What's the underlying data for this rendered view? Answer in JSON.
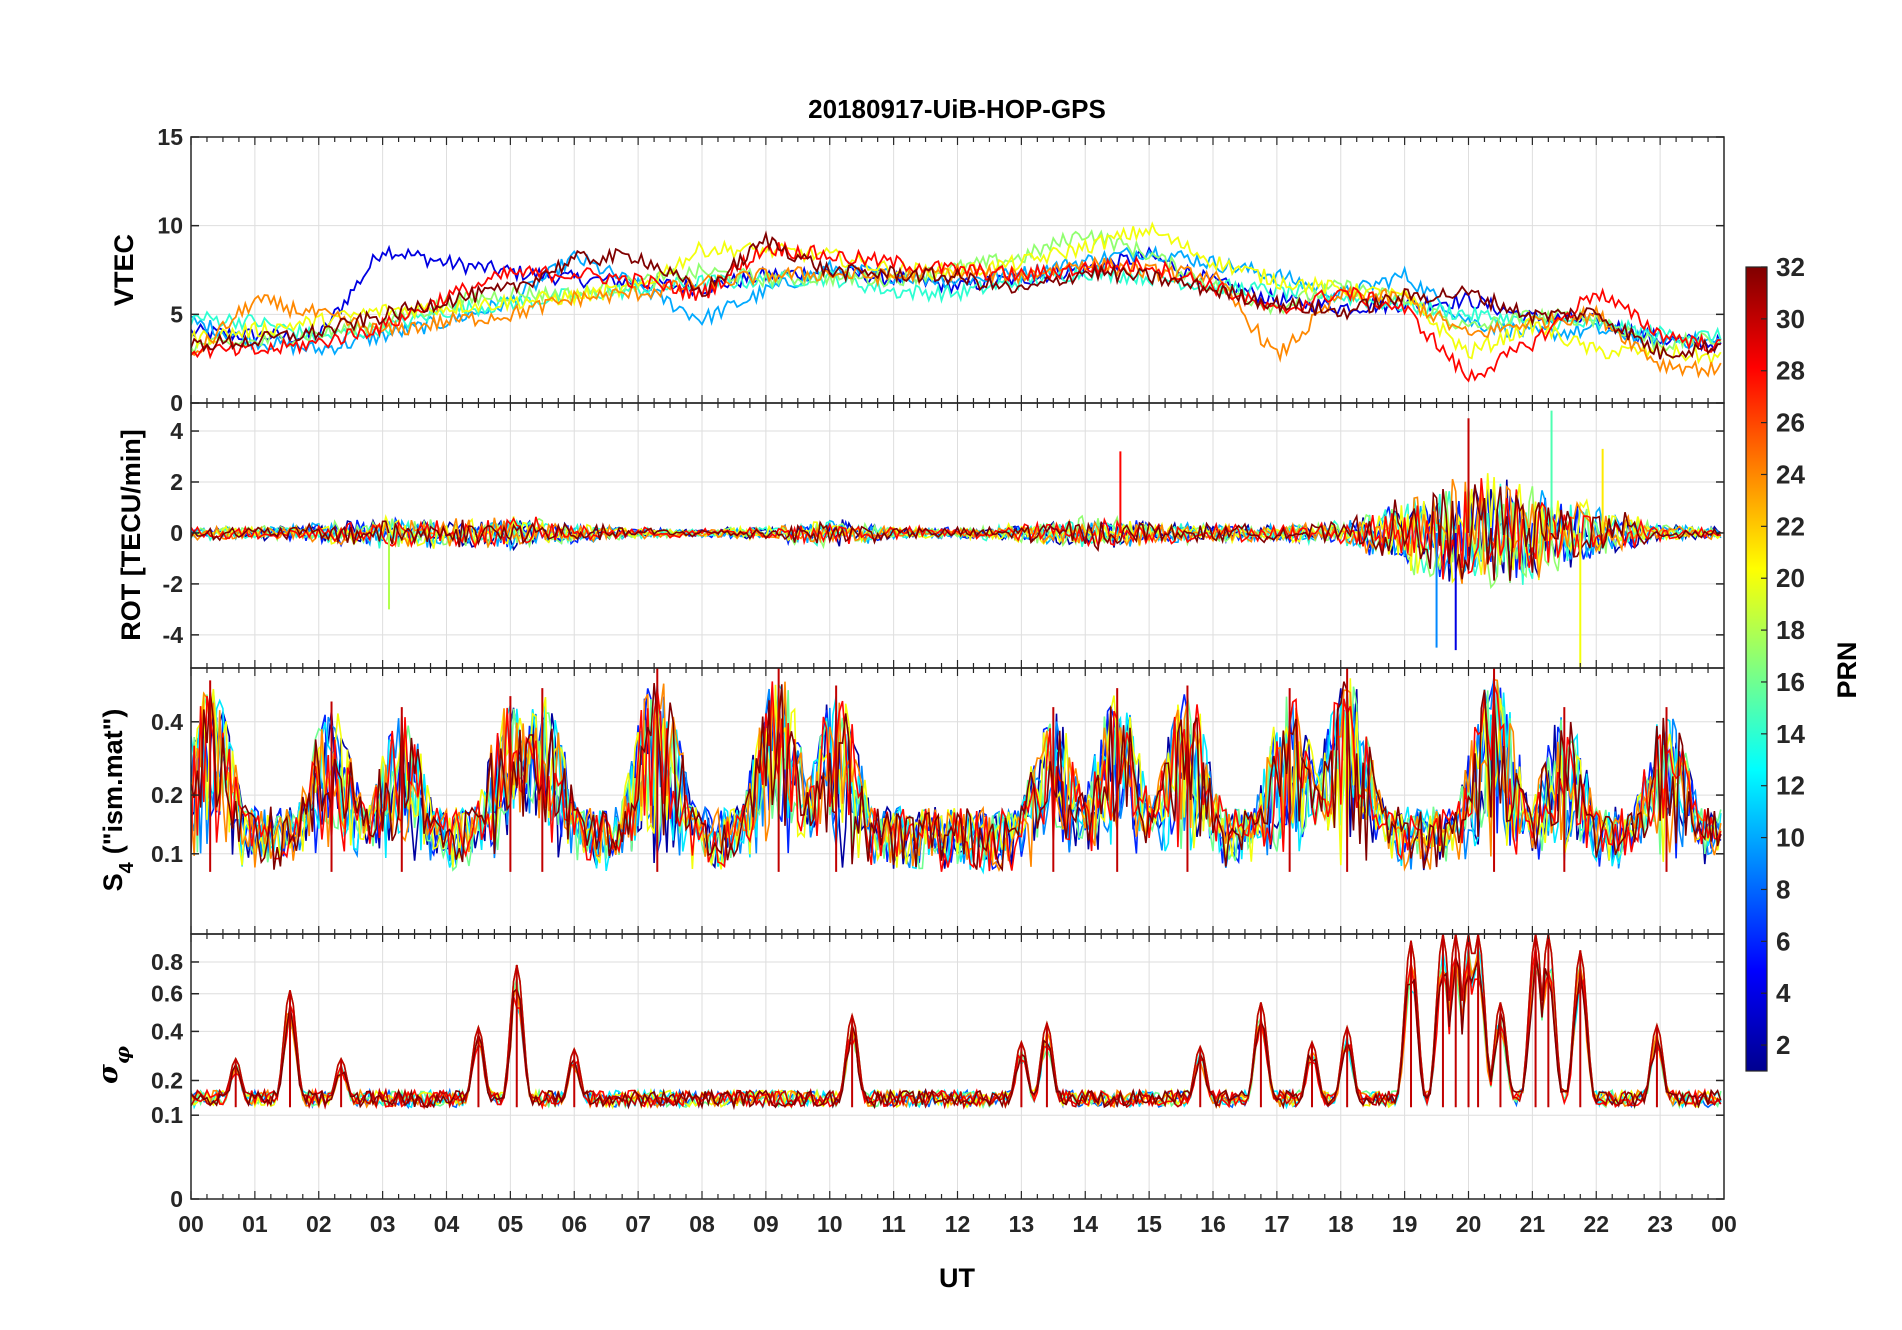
{
  "chart_data": {
    "type": "line",
    "title": "20180917-UiB-HOP-GPS",
    "xlabel": "UT",
    "x_tick_labels": [
      "00",
      "01",
      "02",
      "03",
      "04",
      "05",
      "06",
      "07",
      "08",
      "09",
      "10",
      "11",
      "12",
      "13",
      "14",
      "15",
      "16",
      "17",
      "18",
      "19",
      "20",
      "21",
      "22",
      "23",
      "00"
    ],
    "xlim_hours": [
      0,
      24
    ],
    "grid": true,
    "panels": [
      {
        "id": "vtec",
        "ylabel": "VTEC",
        "ylim": [
          0,
          15
        ],
        "yticks": [
          0,
          5,
          10,
          15
        ],
        "ytick_labels": [
          "0",
          "5",
          "10",
          "15"
        ],
        "series": [
          {
            "prn": 4,
            "x": [
              0.0,
              1.0,
              2.0,
              3.0,
              4.0,
              5.0,
              6.0,
              7.0,
              8.0,
              9.0,
              10.0,
              11.0,
              12.0,
              13.0,
              14.0,
              15.0,
              16.0,
              17.0,
              18.0,
              19.0,
              20.0,
              21.0,
              22.0,
              23.0,
              24.0
            ],
            "y": [
              4.0,
              3.8,
              3.7,
              8.7,
              7.9,
              7.4,
              7.0,
              6.8,
              6.5,
              7.2,
              7.4,
              7.0,
              6.6,
              7.0,
              7.6,
              8.3,
              6.8,
              5.8,
              5.4,
              5.6,
              5.8,
              4.8,
              4.6,
              3.6,
              3.3
            ]
          },
          {
            "prn": 10,
            "x": [
              0.0,
              1.0,
              2.0,
              3.0,
              4.0,
              5.0,
              6.0,
              7.0,
              8.0,
              9.0,
              10.0,
              11.0,
              12.0,
              13.0,
              14.0,
              15.0,
              16.0,
              17.0,
              18.0,
              19.0,
              20.0,
              21.0,
              22.0,
              23.0,
              24.0
            ],
            "y": [
              4.6,
              3.5,
              3.0,
              3.8,
              4.6,
              5.7,
              8.2,
              6.6,
              4.7,
              6.3,
              7.6,
              7.2,
              6.9,
              7.3,
              8.0,
              8.6,
              7.9,
              7.2,
              6.1,
              7.2,
              4.6,
              3.9,
              4.1,
              3.6,
              3.4
            ]
          },
          {
            "prn": 14,
            "x": [
              0.0,
              1.0,
              2.0,
              3.0,
              4.0,
              5.0,
              6.0,
              7.0,
              8.0,
              9.0,
              10.0,
              11.0,
              12.0,
              13.0,
              14.0,
              15.0,
              16.0,
              17.0,
              18.0,
              19.0,
              20.0,
              21.0,
              22.0,
              23.0,
              24.0
            ],
            "y": [
              4.8,
              4.6,
              3.7,
              4.2,
              5.2,
              5.6,
              6.1,
              6.4,
              6.8,
              6.9,
              7.1,
              6.3,
              6.2,
              6.9,
              7.4,
              7.1,
              6.6,
              6.3,
              6.0,
              5.5,
              5.0,
              4.6,
              4.4,
              3.9,
              3.7
            ]
          },
          {
            "prn": 17,
            "x": [
              0.0,
              1.0,
              2.0,
              3.0,
              4.0,
              5.0,
              6.0,
              7.0,
              8.0,
              9.0,
              10.0,
              11.0,
              12.0,
              13.0,
              14.0,
              15.0,
              16.0,
              17.0,
              18.0,
              19.0,
              20.0,
              21.0,
              22.0,
              23.0,
              24.0
            ],
            "y": [
              3.2,
              3.4,
              3.9,
              4.5,
              5.6,
              6.2,
              6.1,
              6.8,
              7.4,
              7.0,
              7.1,
              7.0,
              7.6,
              8.2,
              9.6,
              8.4,
              6.6,
              5.4,
              6.6,
              5.8,
              4.2,
              4.9,
              4.8,
              3.3,
              3.6
            ]
          },
          {
            "prn": 20,
            "x": [
              0.0,
              1.0,
              2.0,
              3.0,
              4.0,
              5.0,
              6.0,
              7.0,
              8.0,
              9.0,
              10.0,
              11.0,
              12.0,
              13.0,
              14.0,
              15.0,
              16.0,
              17.0,
              18.0,
              19.0,
              20.0,
              21.0,
              22.0,
              23.0,
              24.0
            ],
            "y": [
              3.6,
              4.1,
              4.6,
              5.2,
              5.4,
              5.7,
              6.0,
              6.5,
              8.7,
              8.6,
              8.3,
              7.5,
              7.4,
              7.9,
              8.8,
              9.8,
              8.0,
              6.9,
              6.4,
              6.0,
              2.8,
              4.4,
              2.9,
              2.9,
              2.5
            ]
          },
          {
            "prn": 24,
            "x": [
              0.0,
              1.0,
              2.0,
              3.0,
              4.0,
              5.0,
              6.0,
              7.0,
              8.0,
              9.0,
              10.0,
              11.0,
              12.0,
              13.0,
              14.0,
              15.0,
              16.0,
              17.0,
              18.0,
              19.0,
              20.0,
              21.0,
              22.0,
              23.0,
              24.0
            ],
            "y": [
              2.6,
              5.8,
              5.0,
              4.0,
              4.6,
              5.0,
              5.9,
              6.2,
              6.7,
              7.2,
              7.3,
              7.1,
              7.4,
              7.2,
              7.9,
              7.4,
              7.2,
              2.6,
              6.1,
              5.9,
              3.8,
              4.6,
              5.0,
              2.2,
              1.8
            ]
          },
          {
            "prn": 28,
            "x": [
              0.0,
              1.0,
              2.0,
              3.0,
              4.0,
              5.0,
              6.0,
              7.0,
              8.0,
              9.0,
              10.0,
              11.0,
              12.0,
              13.0,
              14.0,
              15.0,
              16.0,
              17.0,
              18.0,
              19.0,
              20.0,
              21.0,
              22.0,
              23.0,
              24.0
            ],
            "y": [
              3.0,
              2.9,
              3.4,
              4.3,
              6.0,
              7.3,
              7.3,
              6.9,
              6.1,
              8.8,
              8.3,
              7.9,
              7.5,
              7.2,
              7.6,
              7.8,
              6.6,
              5.1,
              6.3,
              5.3,
              1.4,
              3.4,
              6.3,
              3.9,
              3.1
            ]
          },
          {
            "prn": 32,
            "x": [
              0.0,
              1.0,
              2.0,
              3.0,
              4.0,
              5.0,
              6.0,
              7.0,
              8.0,
              9.0,
              10.0,
              11.0,
              12.0,
              13.0,
              14.0,
              15.0,
              16.0,
              17.0,
              18.0,
              19.0,
              20.0,
              21.0,
              22.0,
              23.0,
              24.0
            ],
            "y": [
              3.3,
              3.5,
              4.0,
              4.9,
              5.8,
              6.4,
              8.1,
              8.3,
              6.2,
              9.2,
              7.4,
              7.3,
              7.1,
              6.3,
              7.4,
              7.1,
              6.4,
              5.6,
              5.1,
              6.0,
              6.2,
              4.9,
              5.1,
              2.8,
              3.3
            ]
          }
        ]
      },
      {
        "id": "rot",
        "ylabel": "ROT [TECU/min]",
        "ylim": [
          -5.3,
          5.1
        ],
        "yticks": [
          -4,
          -2,
          0,
          2,
          4
        ],
        "ytick_labels": [
          "-4",
          "-2",
          "0",
          "2",
          "4"
        ],
        "activity": [
          {
            "x": [
              0.0,
              1.0,
              2.0,
              3.0,
              4.0,
              5.0,
              6.0,
              7.0,
              8.0,
              9.0,
              10.0,
              11.0,
              12.0,
              13.0,
              14.0,
              15.0,
              16.0,
              17.0,
              18.0,
              19.0,
              20.0,
              21.0,
              22.0,
              23.0,
              24.0
            ],
            "spread": [
              0.5,
              0.5,
              0.7,
              1.2,
              1.0,
              1.3,
              0.7,
              0.4,
              0.3,
              0.5,
              1.1,
              0.5,
              0.4,
              0.7,
              1.2,
              0.9,
              0.7,
              0.6,
              0.8,
              2.5,
              4.5,
              3.6,
              2.2,
              0.6,
              0.4
            ]
          }
        ],
        "extremes": [
          {
            "hour": 3.1,
            "value": -3.0
          },
          {
            "hour": 14.55,
            "value": 3.2
          },
          {
            "hour": 19.5,
            "value": -4.5
          },
          {
            "hour": 19.8,
            "value": -4.6
          },
          {
            "hour": 20.0,
            "value": 4.5
          },
          {
            "hour": 21.3,
            "value": 4.8
          },
          {
            "hour": 21.75,
            "value": -5.3
          },
          {
            "hour": 22.1,
            "value": 3.3
          }
        ]
      },
      {
        "id": "s4",
        "ylabel": "S4 (\"ism.mat\")",
        "ylabel_main": "S",
        "ylabel_sub": "4",
        "ylabel_rest": "(\"ism.mat\")",
        "ylim": [
          0.05,
          0.6
        ],
        "yticks": [
          0.1,
          0.2,
          0.4
        ],
        "ytick_labels": [
          "0.1",
          "0.2",
          "0.4"
        ],
        "baseline": 0.08,
        "peaks": [
          {
            "hour": 0.3,
            "value": 0.55
          },
          {
            "hour": 2.2,
            "value": 0.47
          },
          {
            "hour": 3.3,
            "value": 0.45
          },
          {
            "hour": 5.0,
            "value": 0.49
          },
          {
            "hour": 5.5,
            "value": 0.52
          },
          {
            "hour": 7.3,
            "value": 0.6
          },
          {
            "hour": 9.2,
            "value": 0.6
          },
          {
            "hour": 10.1,
            "value": 0.53
          },
          {
            "hour": 13.5,
            "value": 0.45
          },
          {
            "hour": 14.5,
            "value": 0.52
          },
          {
            "hour": 15.6,
            "value": 0.53
          },
          {
            "hour": 17.2,
            "value": 0.52
          },
          {
            "hour": 18.1,
            "value": 0.6
          },
          {
            "hour": 20.4,
            "value": 0.6
          },
          {
            "hour": 21.5,
            "value": 0.45
          },
          {
            "hour": 23.1,
            "value": 0.45
          }
        ]
      },
      {
        "id": "sigma_phi",
        "ylabel": "σφ",
        "ylabel_main": "σ",
        "ylabel_sub": "φ",
        "ylim": [
          0,
          1
        ],
        "yticks": [
          0,
          0.1,
          0.2,
          0.4,
          0.6,
          0.8
        ],
        "ytick_labels": [
          "0",
          "0.1",
          "0.2",
          "0.4",
          "0.6",
          "0.8"
        ],
        "baseline": 0.12,
        "peaks": [
          {
            "hour": 0.7,
            "value": 0.28
          },
          {
            "hour": 1.55,
            "value": 0.62
          },
          {
            "hour": 2.35,
            "value": 0.28
          },
          {
            "hour": 4.5,
            "value": 0.42
          },
          {
            "hour": 5.1,
            "value": 0.78
          },
          {
            "hour": 6.0,
            "value": 0.32
          },
          {
            "hour": 10.35,
            "value": 0.48
          },
          {
            "hour": 13.4,
            "value": 0.44
          },
          {
            "hour": 13.0,
            "value": 0.35
          },
          {
            "hour": 15.8,
            "value": 0.33
          },
          {
            "hour": 16.75,
            "value": 0.55
          },
          {
            "hour": 17.55,
            "value": 0.35
          },
          {
            "hour": 18.1,
            "value": 0.42
          },
          {
            "hour": 19.1,
            "value": 0.95
          },
          {
            "hour": 19.6,
            "value": 1.0
          },
          {
            "hour": 19.8,
            "value": 1.0
          },
          {
            "hour": 20.0,
            "value": 1.0
          },
          {
            "hour": 20.15,
            "value": 1.0
          },
          {
            "hour": 20.5,
            "value": 0.55
          },
          {
            "hour": 21.05,
            "value": 1.0
          },
          {
            "hour": 21.25,
            "value": 1.0
          },
          {
            "hour": 21.75,
            "value": 0.88
          },
          {
            "hour": 22.95,
            "value": 0.43
          }
        ]
      }
    ],
    "colorbar": {
      "label": "PRN",
      "min": 1,
      "max": 32,
      "ticks": [
        2,
        4,
        6,
        8,
        10,
        12,
        14,
        16,
        18,
        20,
        22,
        24,
        26,
        28,
        30,
        32
      ],
      "tick_labels": [
        "2",
        "4",
        "6",
        "8",
        "10",
        "12",
        "14",
        "16",
        "18",
        "20",
        "22",
        "24",
        "26",
        "28",
        "30",
        "32"
      ],
      "colormap": "jet"
    },
    "colors": {
      "axis": "#262626",
      "grid": "#dedede"
    }
  }
}
